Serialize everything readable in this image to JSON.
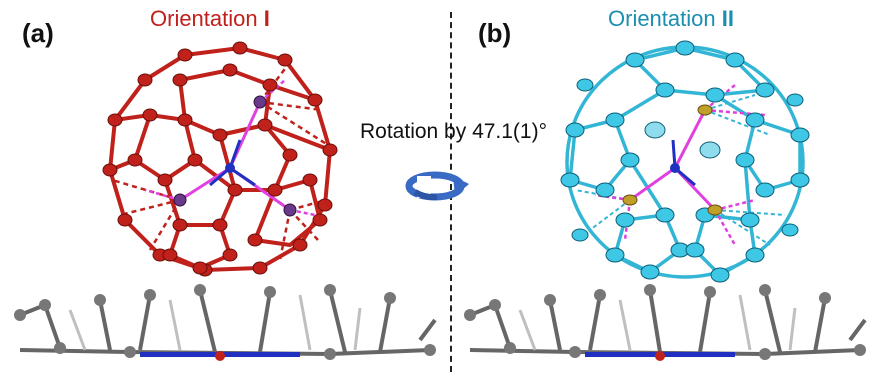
{
  "panels": {
    "a": {
      "label": "(a)",
      "title_prefix": "Orientation ",
      "title_numeral": "I",
      "color": "#c0211b"
    },
    "b": {
      "label": "(b)",
      "title_prefix": "Orientation ",
      "title_numeral": "II",
      "color": "#1b8fb0"
    }
  },
  "rotation_label": "Rotation by 47.1(1)°",
  "colors": {
    "cage_red": "#c0211b",
    "cage_cyan": "#3ec8e6",
    "metal_bond": "#e040e0",
    "nitrogen": "#2030c0",
    "porphyrin_gray": "#555555",
    "arrow_blue": "#3a6bc4"
  }
}
